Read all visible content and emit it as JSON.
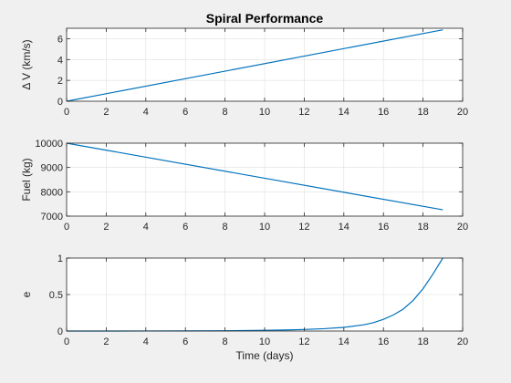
{
  "figure": {
    "background": "#f0f0f0",
    "line_color": "#0072bd"
  },
  "chart_data": [
    {
      "type": "line",
      "title": "Spiral Performance",
      "xlabel": "",
      "ylabel": "Δ V (km/s)",
      "xlim": [
        0,
        20
      ],
      "ylim": [
        0,
        7
      ],
      "xticks": [
        0,
        2,
        4,
        6,
        8,
        10,
        12,
        14,
        16,
        18,
        20
      ],
      "yticks": [
        0,
        2,
        4,
        6
      ],
      "grid": true,
      "series": [
        {
          "x": [
            0,
            19
          ],
          "y": [
            0,
            6.85
          ]
        }
      ]
    },
    {
      "type": "line",
      "title": "",
      "xlabel": "",
      "ylabel": "Fuel (kg)",
      "xlim": [
        0,
        20
      ],
      "ylim": [
        7000,
        10000
      ],
      "xticks": [
        0,
        2,
        4,
        6,
        8,
        10,
        12,
        14,
        16,
        18,
        20
      ],
      "yticks": [
        7000,
        8000,
        9000,
        10000
      ],
      "grid": true,
      "series": [
        {
          "x": [
            0,
            19
          ],
          "y": [
            10000,
            7260
          ]
        }
      ]
    },
    {
      "type": "line",
      "title": "",
      "xlabel": "Time (days)",
      "ylabel": "e",
      "xlim": [
        0,
        20
      ],
      "ylim": [
        0,
        1
      ],
      "xticks": [
        0,
        2,
        4,
        6,
        8,
        10,
        12,
        14,
        16,
        18,
        20
      ],
      "yticks": [
        0,
        0.5,
        1
      ],
      "grid": true,
      "series": [
        {
          "x": [
            0,
            2,
            4,
            6,
            8,
            9,
            10,
            11,
            12,
            13,
            14,
            15,
            15.5,
            16,
            16.5,
            17,
            17.5,
            18,
            18.5,
            19
          ],
          "y": [
            0,
            0,
            0.001,
            0.002,
            0.004,
            0.006,
            0.009,
            0.014,
            0.021,
            0.032,
            0.05,
            0.085,
            0.115,
            0.16,
            0.22,
            0.3,
            0.42,
            0.58,
            0.78,
            1.0
          ]
        }
      ]
    }
  ]
}
